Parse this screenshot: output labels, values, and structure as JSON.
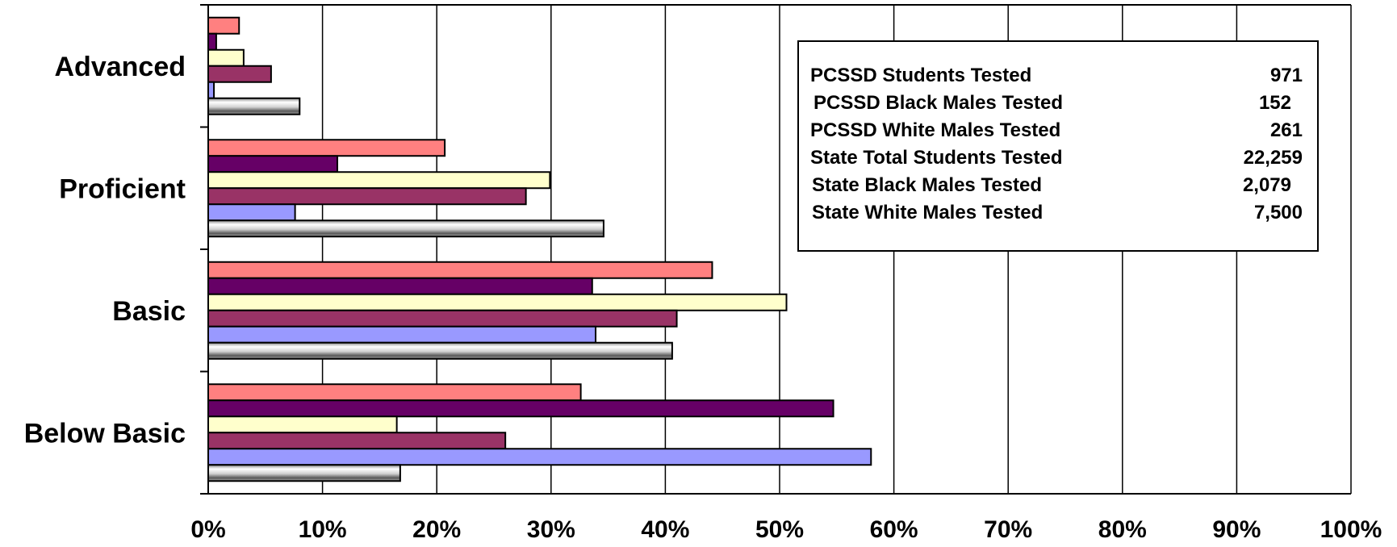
{
  "chart_data": {
    "type": "bar",
    "orientation": "horizontal",
    "categories": [
      "Advanced",
      "Proficient",
      "Basic",
      "Below Basic"
    ],
    "series": [
      {
        "color": "#ff8080",
        "values": [
          2.7,
          20.7,
          44.1,
          32.6
        ]
      },
      {
        "color": "#660066",
        "values": [
          0.7,
          11.3,
          33.6,
          54.7
        ]
      },
      {
        "color": "#ffffcc",
        "values": [
          3.1,
          29.9,
          50.6,
          16.5
        ]
      },
      {
        "color": "#993366",
        "values": [
          5.5,
          27.8,
          41.0,
          26.0
        ]
      },
      {
        "color": "#9999ff",
        "values": [
          0.5,
          7.6,
          33.9,
          58.0
        ]
      },
      {
        "color": "#c0c0c0",
        "values": [
          8.0,
          34.6,
          40.6,
          16.8
        ]
      }
    ],
    "xlim": [
      0,
      100
    ],
    "x_ticks": [
      "0%",
      "10%",
      "20%",
      "30%",
      "40%",
      "50%",
      "60%",
      "70%",
      "80%",
      "90%",
      "100%"
    ],
    "grid": true,
    "legend_position": "top-right"
  },
  "info_box": {
    "rows": [
      {
        "label": "PCSSD Students Tested",
        "value": "971"
      },
      {
        "label": "PCSSD Black Males Tested",
        "value": "152"
      },
      {
        "label": "PCSSD White Males Tested",
        "value": "261"
      },
      {
        "label": "State Total Students Tested",
        "value": "22,259"
      },
      {
        "label": "State Black Males Tested",
        "value": "2,079"
      },
      {
        "label": "State White Males Tested",
        "value": "7,500"
      }
    ]
  }
}
